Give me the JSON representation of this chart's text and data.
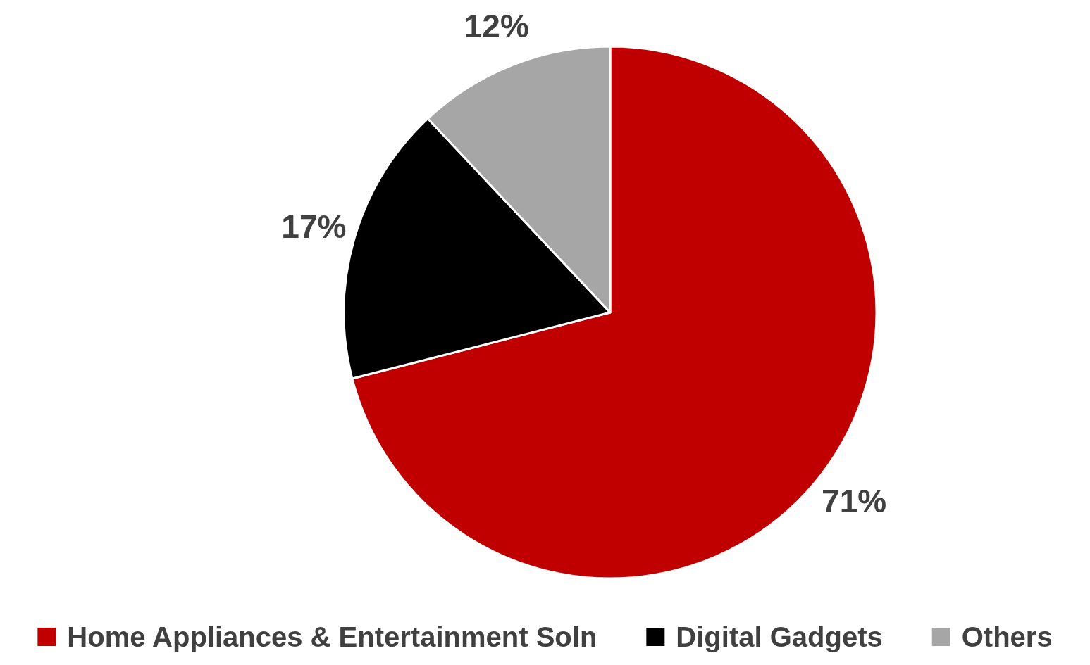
{
  "chart_data": {
    "type": "pie",
    "categories": [
      "Home Appliances & Entertainment Soln",
      "Digital Gadgets",
      "Others"
    ],
    "values": [
      71,
      17,
      12
    ],
    "colors": [
      "#c00000",
      "#000000",
      "#a6a6a6"
    ],
    "value_labels": [
      "71%",
      "17%",
      "12%"
    ],
    "legend": "bottom"
  }
}
